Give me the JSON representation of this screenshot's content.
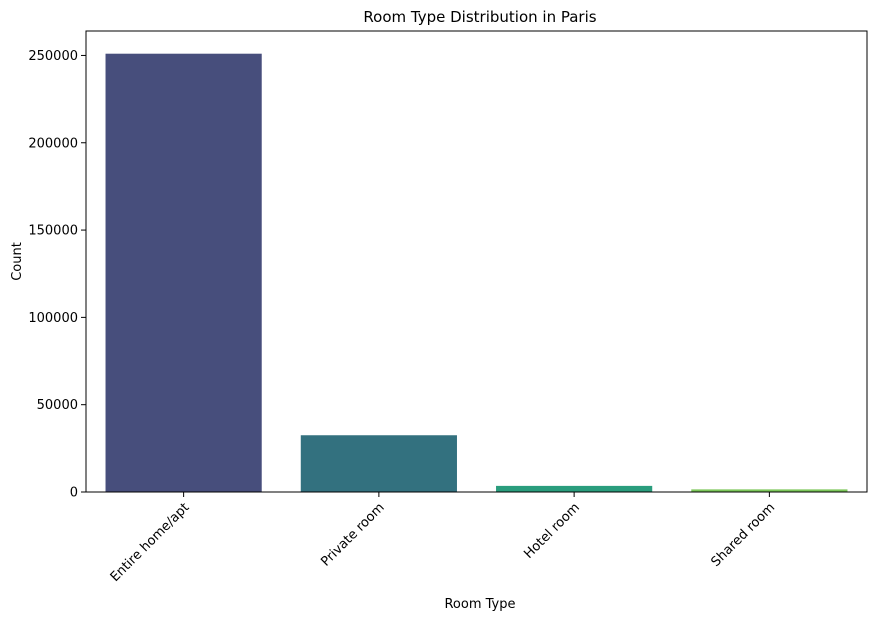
{
  "chart_data": {
    "type": "bar",
    "title": "Room Type Distribution in Paris",
    "xlabel": "Room Type",
    "ylabel": "Count",
    "categories": [
      "Entire home/apt",
      "Private room",
      "Hotel room",
      "Shared room"
    ],
    "values": [
      251000,
      32500,
      3500,
      1500
    ],
    "colors": [
      "#482677",
      "#2D708E",
      "#29AF7F",
      "#B8DE29"
    ],
    "bar_colors_rendered": [
      "#474e7c",
      "#33717f",
      "#2a9d7d",
      "#7cc75a"
    ],
    "ylim": [
      0,
      264000
    ],
    "yticks": [
      0,
      50000,
      100000,
      150000,
      200000,
      250000
    ],
    "ytick_labels": [
      "0",
      "50000",
      "100000",
      "150000",
      "200000",
      "250000"
    ],
    "grid": false,
    "legend": "none",
    "xtick_rotation": 45
  }
}
